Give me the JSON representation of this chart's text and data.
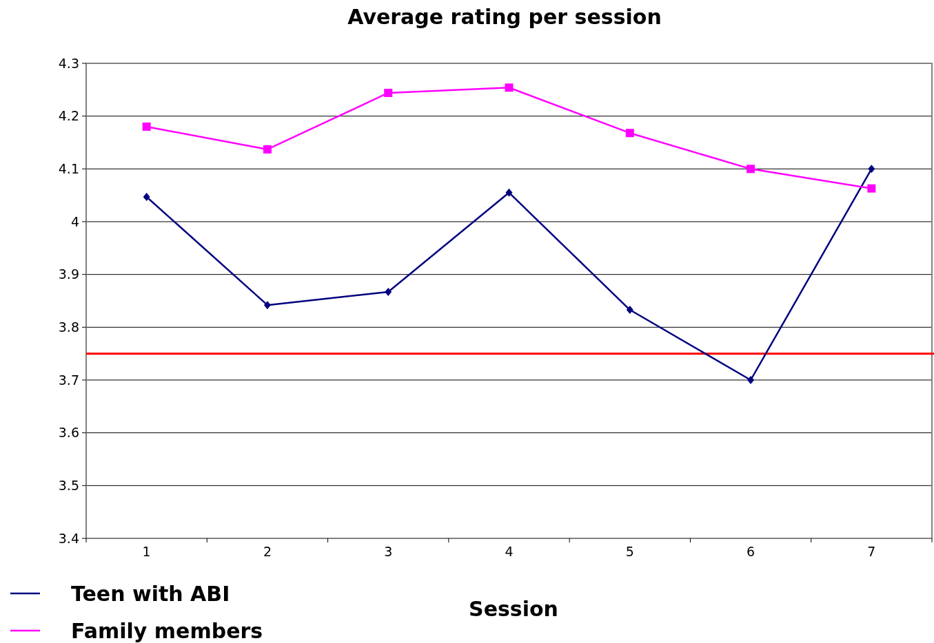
{
  "chart_data": {
    "type": "line",
    "title": "Average rating per session",
    "xlabel": "Session",
    "categories": [
      "1",
      "2",
      "3",
      "4",
      "5",
      "6",
      "7"
    ],
    "series": [
      {
        "name": "Teen with ABI",
        "color": "#000080",
        "marker": "diamond",
        "values": [
          4.047,
          3.842,
          3.867,
          4.055,
          3.833,
          3.7,
          4.1
        ]
      },
      {
        "name": "Family members",
        "color": "#ff00ff",
        "marker": "square",
        "values": [
          4.18,
          4.137,
          4.244,
          4.254,
          4.168,
          4.1,
          4.063
        ]
      }
    ],
    "ylim": [
      3.4,
      4.3
    ],
    "yticks": [
      3.4,
      3.5,
      3.6,
      3.7,
      3.8,
      3.9,
      4,
      4.1,
      4.2,
      4.3
    ],
    "grid": "y",
    "legend": "bottom left",
    "ref_lines": [
      {
        "axis": "y",
        "value": 3.75,
        "color": "#ff0000"
      }
    ]
  }
}
